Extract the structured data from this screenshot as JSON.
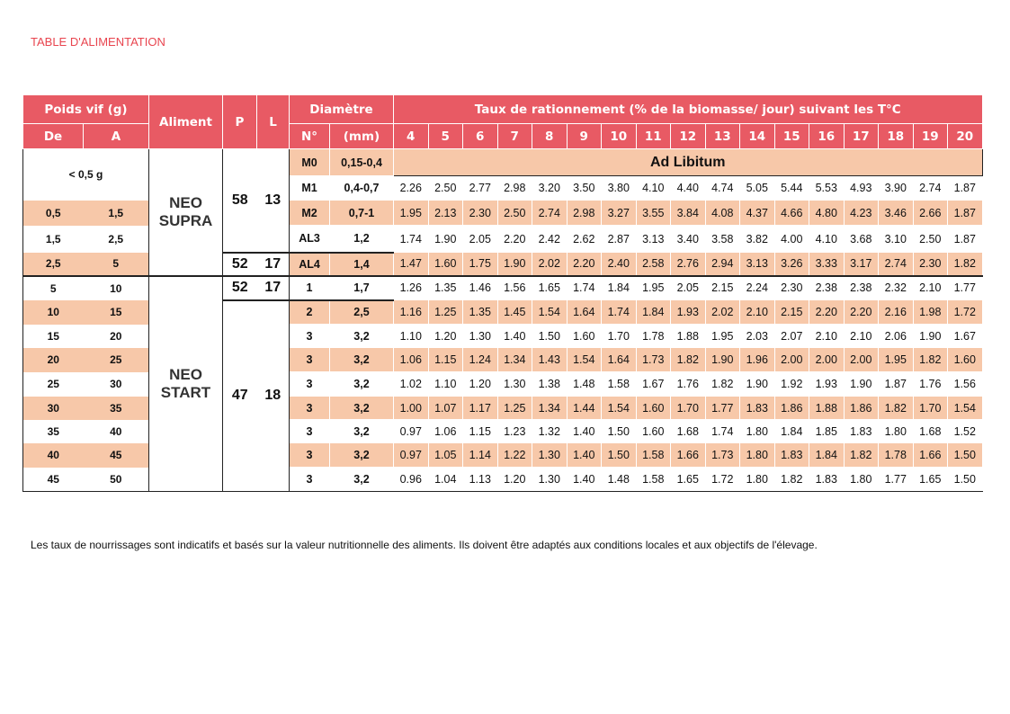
{
  "title": "TABLE D'ALIMENTATION",
  "header": {
    "poids": "Poids vif (g)",
    "de": "De",
    "a": "A",
    "aliment": "Aliment",
    "p": "P",
    "l": "L",
    "diametre": "Diamètre",
    "no": "N°",
    "mm": "(mm)",
    "taux": "Taux de rationnement (% de la biomasse/ jour) suivant les T°C",
    "temps": [
      "4",
      "5",
      "6",
      "7",
      "8",
      "9",
      "10",
      "11",
      "12",
      "13",
      "14",
      "15",
      "16",
      "17",
      "18",
      "19",
      "20"
    ]
  },
  "groups": [
    {
      "aliment": "NEO SUPRA",
      "rows": [
        {
          "de": "< 0,5 g",
          "a": "",
          "no": "M0",
          "mm": "0,15-0,4",
          "ad": "Ad Libitum",
          "shade": true,
          "wshade": false,
          "p": "58",
          "l": "13",
          "values": []
        },
        {
          "no": "M1",
          "mm": "0,4-0,7",
          "shade": false,
          "values": [
            "2.26",
            "2.50",
            "2.77",
            "2.98",
            "3.20",
            "3.50",
            "3.80",
            "4.10",
            "4.40",
            "4.74",
            "5.05",
            "5.44",
            "5.53",
            "4.93",
            "3.90",
            "2.74",
            "1.87"
          ]
        },
        {
          "de": "0,5",
          "a": "1,5",
          "no": "M2",
          "mm": "0,7-1",
          "shade": true,
          "wshade": true,
          "values": [
            "1.95",
            "2.13",
            "2.30",
            "2.50",
            "2.74",
            "2.98",
            "3.27",
            "3.55",
            "3.84",
            "4.08",
            "4.37",
            "4.66",
            "4.80",
            "4.23",
            "3.46",
            "2.66",
            "1.87"
          ]
        },
        {
          "de": "1,5",
          "a": "2,5",
          "no": "AL3",
          "mm": "1,2",
          "shade": false,
          "wshade": false,
          "values": [
            "1.74",
            "1.90",
            "2.05",
            "2.20",
            "2.42",
            "2.62",
            "2.87",
            "3.13",
            "3.40",
            "3.58",
            "3.82",
            "4.00",
            "4.10",
            "3.68",
            "3.10",
            "2.50",
            "1.87"
          ]
        },
        {
          "de": "2,5",
          "a": "5",
          "no": "AL4",
          "mm": "1,4",
          "shade": true,
          "wshade": true,
          "p": "52",
          "l": "17",
          "values": [
            "1.47",
            "1.60",
            "1.75",
            "1.90",
            "2.02",
            "2.20",
            "2.40",
            "2.58",
            "2.76",
            "2.94",
            "3.13",
            "3.26",
            "3.33",
            "3.17",
            "2.74",
            "2.30",
            "1.82"
          ]
        }
      ]
    },
    {
      "aliment": "NEO START",
      "rows": [
        {
          "de": "5",
          "a": "10",
          "no": "1",
          "mm": "1,7",
          "shade": false,
          "p": "52",
          "l": "17",
          "values": [
            "1.26",
            "1.35",
            "1.46",
            "1.56",
            "1.65",
            "1.74",
            "1.84",
            "1.95",
            "2.05",
            "2.15",
            "2.24",
            "2.30",
            "2.38",
            "2.38",
            "2.32",
            "2.10",
            "1.77"
          ]
        },
        {
          "de": "10",
          "a": "15",
          "no": "2",
          "mm": "2,5",
          "shade": true,
          "p": "47",
          "l": "18",
          "values": [
            "1.16",
            "1.25",
            "1.35",
            "1.45",
            "1.54",
            "1.64",
            "1.74",
            "1.84",
            "1.93",
            "2.02",
            "2.10",
            "2.15",
            "2.20",
            "2.20",
            "2.16",
            "1.98",
            "1.72"
          ]
        },
        {
          "de": "15",
          "a": "20",
          "no": "3",
          "mm": "3,2",
          "shade": false,
          "values": [
            "1.10",
            "1.20",
            "1.30",
            "1.40",
            "1.50",
            "1.60",
            "1.70",
            "1.78",
            "1.88",
            "1.95",
            "2.03",
            "2.07",
            "2.10",
            "2.10",
            "2.06",
            "1.90",
            "1.67"
          ]
        },
        {
          "de": "20",
          "a": "25",
          "no": "3",
          "mm": "3,2",
          "shade": true,
          "values": [
            "1.06",
            "1.15",
            "1.24",
            "1.34",
            "1.43",
            "1.54",
            "1.64",
            "1.73",
            "1.82",
            "1.90",
            "1.96",
            "2.00",
            "2.00",
            "2.00",
            "1.95",
            "1.82",
            "1.60"
          ]
        },
        {
          "de": "25",
          "a": "30",
          "no": "3",
          "mm": "3,2",
          "shade": false,
          "values": [
            "1.02",
            "1.10",
            "1.20",
            "1.30",
            "1.38",
            "1.48",
            "1.58",
            "1.67",
            "1.76",
            "1.82",
            "1.90",
            "1.92",
            "1.93",
            "1.90",
            "1.87",
            "1.76",
            "1.56"
          ]
        },
        {
          "de": "30",
          "a": "35",
          "no": "3",
          "mm": "3,2",
          "shade": true,
          "values": [
            "1.00",
            "1.07",
            "1.17",
            "1.25",
            "1.34",
            "1.44",
            "1.54",
            "1.60",
            "1.70",
            "1.77",
            "1.83",
            "1.86",
            "1.88",
            "1.86",
            "1.82",
            "1.70",
            "1.54"
          ]
        },
        {
          "de": "35",
          "a": "40",
          "no": "3",
          "mm": "3,2",
          "shade": false,
          "values": [
            "0.97",
            "1.06",
            "1.15",
            "1.23",
            "1.32",
            "1.40",
            "1.50",
            "1.60",
            "1.68",
            "1.74",
            "1.80",
            "1.84",
            "1.85",
            "1.83",
            "1.80",
            "1.68",
            "1.52"
          ]
        },
        {
          "de": "40",
          "a": "45",
          "no": "3",
          "mm": "3,2",
          "shade": true,
          "values": [
            "0.97",
            "1.05",
            "1.14",
            "1.22",
            "1.30",
            "1.40",
            "1.50",
            "1.58",
            "1.66",
            "1.73",
            "1.80",
            "1.83",
            "1.84",
            "1.82",
            "1.78",
            "1.66",
            "1.50"
          ]
        },
        {
          "de": "45",
          "a": "50",
          "no": "3",
          "mm": "3,2",
          "shade": false,
          "values": [
            "0.96",
            "1.04",
            "1.13",
            "1.20",
            "1.30",
            "1.40",
            "1.48",
            "1.58",
            "1.65",
            "1.72",
            "1.80",
            "1.82",
            "1.83",
            "1.80",
            "1.77",
            "1.65",
            "1.50"
          ]
        }
      ]
    }
  ],
  "note": "Les taux de nourrissages sont indicatifs et basés sur la valeur nutritionnelle des aliments. Ils doivent être adaptés aux conditions locales et aux objectifs de l'élevage.",
  "colors": {
    "header": "#e85a64",
    "shade": "#f7c8a9",
    "title": "#e8454f"
  }
}
